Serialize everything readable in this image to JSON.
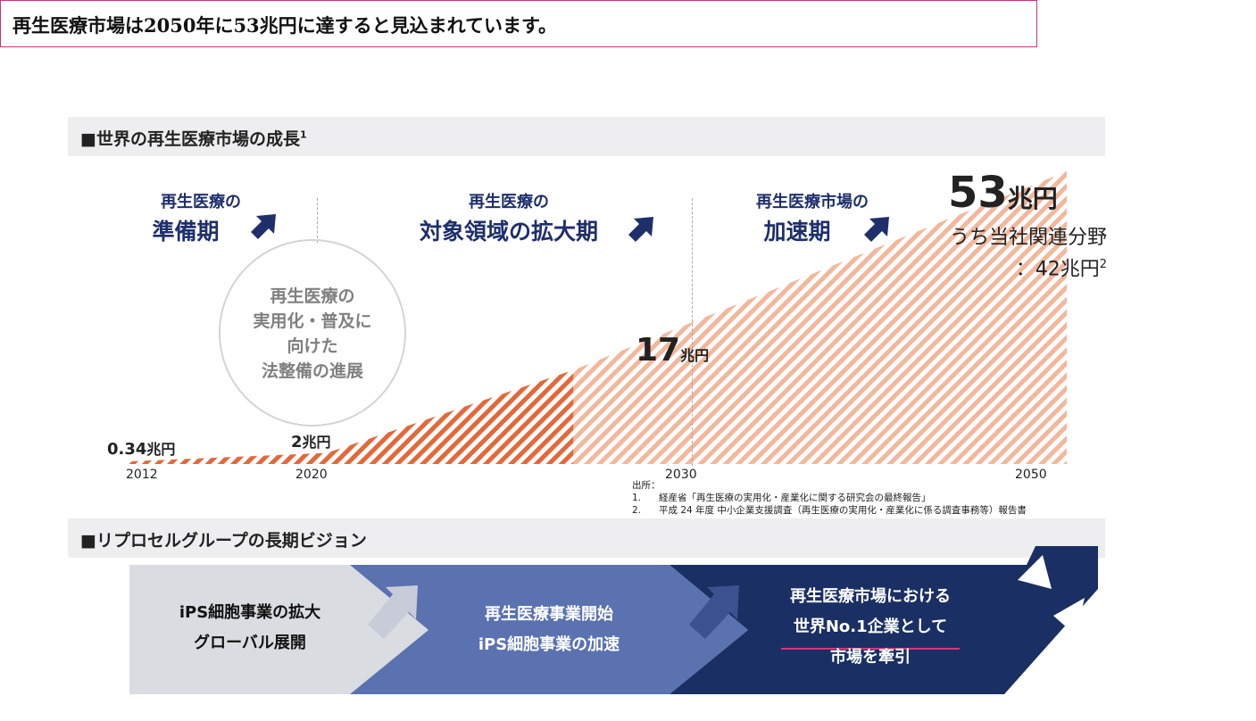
{
  "headline": "再生医療市場は2050年に53兆円に達すると見込まれています。",
  "section1": {
    "title": "■世界の再生医療市場の成長",
    "sup": "1"
  },
  "phases": [
    {
      "line1": "再生医療の",
      "line2": "準備期"
    },
    {
      "line1": "再生医療の",
      "line2": "対象領域の拡大期"
    },
    {
      "line1": "再生医療市場の",
      "line2": "加速期"
    }
  ],
  "circle_text": [
    "再生医療の",
    "実用化・普及に",
    "向けた",
    "法整備の進展"
  ],
  "chart_data": {
    "type": "area",
    "x": [
      2012,
      2020,
      2030,
      2050
    ],
    "values": [
      0.34,
      2,
      17,
      53
    ],
    "unit": "兆円",
    "value_labels": [
      {
        "num": "0.34",
        "unit": "兆円"
      },
      {
        "num": "2",
        "unit": "兆円"
      },
      {
        "num": "17",
        "unit": "兆円"
      },
      {
        "num": "53",
        "unit": "兆円"
      }
    ],
    "tick_labels": [
      "2012",
      "2020",
      "2030",
      "2050"
    ],
    "annotation_line1": "うち当社関連分野",
    "annotation_line2": "：42兆円",
    "annotation_sup": "2",
    "colors": {
      "early": "#e4683a",
      "late": "#f3b79c"
    }
  },
  "sources": {
    "title": "出所：",
    "items": [
      {
        "num": "1.",
        "text": "経産省「再生医療の実用化・産業化に関する研究会の最終報告」"
      },
      {
        "num": "2.",
        "text": "平成 24 年度 中小企業支援調査（再生医療の実用化・産業化に係る調査事務等）報告書"
      }
    ]
  },
  "section2": {
    "title": "■リプロセルグループの長期ビジョン"
  },
  "vision": [
    {
      "lines": [
        "iPS細胞事業の拡大",
        "グローバル展開"
      ],
      "color": "#d9dce0"
    },
    {
      "lines": [
        "再生医療事業開始",
        "iPS細胞事業の加速"
      ],
      "color": "#5b72b0"
    },
    {
      "lines": [
        "再生医療市場における",
        "世界No.1企業として",
        "市場を牽引"
      ],
      "color": "#1a2f63"
    }
  ]
}
